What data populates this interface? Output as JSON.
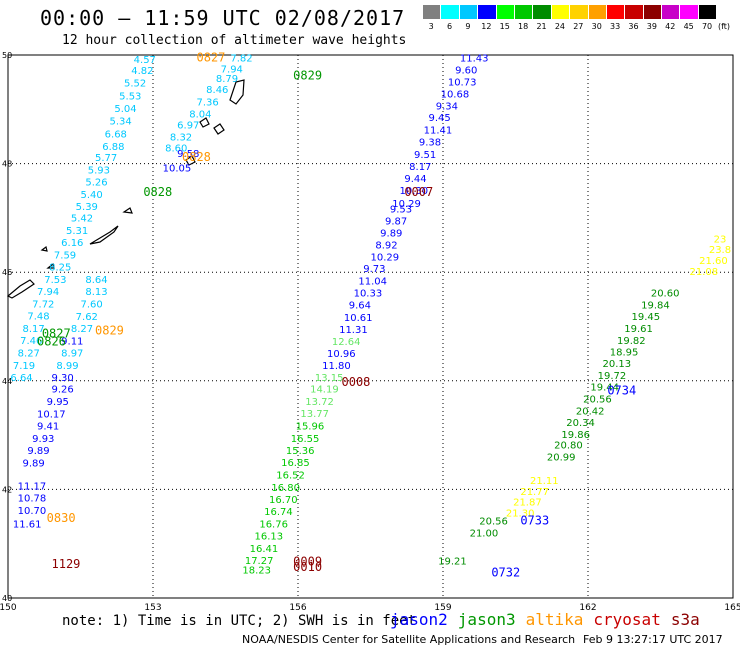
{
  "header": {
    "title": "00:00 — 11:59 UTC 02/08/2017",
    "subtitle": "12 hour collection of altimeter wave heights"
  },
  "legend": {
    "unit": "(ft)",
    "bins": [
      {
        "value": "3",
        "color": "#808080"
      },
      {
        "value": "6",
        "color": "#00ffff"
      },
      {
        "value": "9",
        "color": "#00c8ff"
      },
      {
        "value": "12",
        "color": "#0000ff"
      },
      {
        "value": "15",
        "color": "#00ff00"
      },
      {
        "value": "18",
        "color": "#00c800"
      },
      {
        "value": "21",
        "color": "#008c00"
      },
      {
        "value": "24",
        "color": "#ffff00"
      },
      {
        "value": "27",
        "color": "#ffd200"
      },
      {
        "value": "30",
        "color": "#ffa000"
      },
      {
        "value": "33",
        "color": "#ff0000"
      },
      {
        "value": "36",
        "color": "#c80000"
      },
      {
        "value": "39",
        "color": "#8c0000"
      },
      {
        "value": "42",
        "color": "#c800c8"
      },
      {
        "value": "45",
        "color": "#ff00ff"
      },
      {
        "value": "70",
        "color": "#000000"
      }
    ],
    "trailing_value": "70"
  },
  "map": {
    "lon_range": [
      150,
      165
    ],
    "lat_range": [
      40,
      50
    ],
    "lon_ticks": [
      "150",
      "153",
      "156",
      "159",
      "162",
      "165"
    ],
    "lat_ticks": [
      "40",
      "42",
      "44",
      "46",
      "48",
      "50"
    ],
    "grid": true
  },
  "satellites": [
    {
      "name": "jason2",
      "color": "#0000ff"
    },
    {
      "name": "jason3",
      "color": "#009600"
    },
    {
      "name": "altika",
      "color": "#ff9600"
    },
    {
      "name": "cryosat",
      "color": "#c80000"
    },
    {
      "name": "s3a",
      "color": "#8c0000"
    }
  ],
  "tracks": {
    "time_labels": [
      {
        "text": "0827",
        "lon": 153.9,
        "lat": 49.88,
        "color": "#ff9600"
      },
      {
        "text": "0829",
        "lon": 155.9,
        "lat": 49.55,
        "color": "#009600"
      },
      {
        "text": "0828",
        "lon": 153.6,
        "lat": 48.05,
        "color": "#ff9600"
      },
      {
        "text": "0828",
        "lon": 152.8,
        "lat": 47.4,
        "color": "#009600"
      },
      {
        "text": "0007",
        "lon": 158.2,
        "lat": 47.4,
        "color": "#8c0000"
      },
      {
        "text": "0829",
        "lon": 151.8,
        "lat": 44.85,
        "color": "#ff9600"
      },
      {
        "text": "0827",
        "lon": 150.7,
        "lat": 44.8,
        "color": "#009600"
      },
      {
        "text": "0826",
        "lon": 150.6,
        "lat": 44.65,
        "color": "#009600"
      },
      {
        "text": "0008",
        "lon": 156.9,
        "lat": 43.9,
        "color": "#8c0000"
      },
      {
        "text": "0734",
        "lon": 162.4,
        "lat": 43.75,
        "color": "#0000ff"
      },
      {
        "text": "0830",
        "lon": 150.8,
        "lat": 41.4,
        "color": "#ff9600"
      },
      {
        "text": "0733",
        "lon": 160.6,
        "lat": 41.35,
        "color": "#0000ff"
      },
      {
        "text": "1129",
        "lon": 150.9,
        "lat": 40.55,
        "color": "#8c0000"
      },
      {
        "text": "0009",
        "lon": 155.9,
        "lat": 40.6,
        "color": "#8c0000"
      },
      {
        "text": "0010",
        "lon": 155.9,
        "lat": 40.5,
        "color": "#8c0000"
      },
      {
        "text": "0732",
        "lon": 160.0,
        "lat": 40.4,
        "color": "#0000ff"
      }
    ],
    "points": [
      {
        "text": "4.57",
        "lon": 152.6,
        "lat": 49.85,
        "color": "#00c8ff"
      },
      {
        "text": "4.82",
        "lon": 152.55,
        "lat": 49.65,
        "color": "#00c8ff"
      },
      {
        "text": "5.52",
        "lon": 152.4,
        "lat": 49.42,
        "color": "#00c8ff"
      },
      {
        "text": "5.53",
        "lon": 152.3,
        "lat": 49.18,
        "color": "#00c8ff"
      },
      {
        "text": "5.04",
        "lon": 152.2,
        "lat": 48.95,
        "color": "#00c8ff"
      },
      {
        "text": "5.34",
        "lon": 152.1,
        "lat": 48.72,
        "color": "#00c8ff"
      },
      {
        "text": "6.68",
        "lon": 152.0,
        "lat": 48.48,
        "color": "#00c8ff"
      },
      {
        "text": "6.88",
        "lon": 151.95,
        "lat": 48.25,
        "color": "#00c8ff"
      },
      {
        "text": "5.77",
        "lon": 151.8,
        "lat": 48.05,
        "color": "#00c8ff"
      },
      {
        "text": "5.93",
        "lon": 151.65,
        "lat": 47.82,
        "color": "#00c8ff"
      },
      {
        "text": "5.26",
        "lon": 151.6,
        "lat": 47.6,
        "color": "#00c8ff"
      },
      {
        "text": "5.40",
        "lon": 151.5,
        "lat": 47.37,
        "color": "#00c8ff"
      },
      {
        "text": "5.39",
        "lon": 151.4,
        "lat": 47.15,
        "color": "#00c8ff"
      },
      {
        "text": "5.42",
        "lon": 151.3,
        "lat": 46.93,
        "color": "#00c8ff"
      },
      {
        "text": "5.31",
        "lon": 151.2,
        "lat": 46.7,
        "color": "#00c8ff"
      },
      {
        "text": "6.16",
        "lon": 151.1,
        "lat": 46.48,
        "color": "#00c8ff"
      },
      {
        "text": "7.59",
        "lon": 150.95,
        "lat": 46.25,
        "color": "#00c8ff"
      },
      {
        "text": "8.25",
        "lon": 150.85,
        "lat": 46.03,
        "color": "#00c8ff"
      },
      {
        "text": "7.53",
        "lon": 150.75,
        "lat": 45.8,
        "color": "#00c8ff"
      },
      {
        "text": "7.94",
        "lon": 150.6,
        "lat": 45.58,
        "color": "#00c8ff"
      },
      {
        "text": "7.72",
        "lon": 150.5,
        "lat": 45.35,
        "color": "#00c8ff"
      },
      {
        "text": "7.48",
        "lon": 150.4,
        "lat": 45.13,
        "color": "#00c8ff"
      },
      {
        "text": "8.17",
        "lon": 150.3,
        "lat": 44.9,
        "color": "#00c8ff"
      },
      {
        "text": "7.46",
        "lon": 150.25,
        "lat": 44.68,
        "color": "#00c8ff"
      },
      {
        "text": "8.27",
        "lon": 150.2,
        "lat": 44.45,
        "color": "#00c8ff"
      },
      {
        "text": "7.19",
        "lon": 150.1,
        "lat": 44.22,
        "color": "#00c8ff"
      },
      {
        "text": "6.64",
        "lon": 150.05,
        "lat": 44.0,
        "color": "#00c8ff"
      },
      {
        "text": "7.82",
        "lon": 154.6,
        "lat": 49.88,
        "color": "#00c8ff"
      },
      {
        "text": "7.94",
        "lon": 154.4,
        "lat": 49.68,
        "color": "#00c8ff"
      },
      {
        "text": "8.79",
        "lon": 154.3,
        "lat": 49.5,
        "color": "#00c8ff"
      },
      {
        "text": "8.46",
        "lon": 154.1,
        "lat": 49.3,
        "color": "#00c8ff"
      },
      {
        "text": "7.36",
        "lon": 153.9,
        "lat": 49.07,
        "color": "#00c8ff"
      },
      {
        "text": "8.04",
        "lon": 153.75,
        "lat": 48.85,
        "color": "#00c8ff"
      },
      {
        "text": "6.97",
        "lon": 153.5,
        "lat": 48.65,
        "color": "#00c8ff"
      },
      {
        "text": "8.32",
        "lon": 153.35,
        "lat": 48.43,
        "color": "#00c8ff"
      },
      {
        "text": "8.60",
        "lon": 153.25,
        "lat": 48.22,
        "color": "#00c8ff"
      },
      {
        "text": "8.64",
        "lon": 151.6,
        "lat": 45.8,
        "color": "#00c8ff"
      },
      {
        "text": "8.13",
        "lon": 151.6,
        "lat": 45.58,
        "color": "#00c8ff"
      },
      {
        "text": "7.60",
        "lon": 151.5,
        "lat": 45.35,
        "color": "#00c8ff"
      },
      {
        "text": "7.62",
        "lon": 151.4,
        "lat": 45.12,
        "color": "#00c8ff"
      },
      {
        "text": "8.27",
        "lon": 151.3,
        "lat": 44.9,
        "color": "#00c8ff"
      },
      {
        "text": "8.97",
        "lon": 151.1,
        "lat": 44.45,
        "color": "#00c8ff"
      },
      {
        "text": "8.99",
        "lon": 151.0,
        "lat": 44.22,
        "color": "#00c8ff"
      },
      {
        "text": "9.58",
        "lon": 153.5,
        "lat": 48.12,
        "color": "#0000ff"
      },
      {
        "text": "10.05",
        "lon": 153.2,
        "lat": 47.85,
        "color": "#0000ff"
      },
      {
        "text": "9.11",
        "lon": 151.1,
        "lat": 44.67,
        "color": "#0000ff"
      },
      {
        "text": "9.30",
        "lon": 150.9,
        "lat": 44.0,
        "color": "#0000ff"
      },
      {
        "text": "9.26",
        "lon": 150.9,
        "lat": 43.78,
        "color": "#0000ff"
      },
      {
        "text": "9.95",
        "lon": 150.8,
        "lat": 43.55,
        "color": "#0000ff"
      },
      {
        "text": "10.17",
        "lon": 150.6,
        "lat": 43.32,
        "color": "#0000ff"
      },
      {
        "text": "9.41",
        "lon": 150.6,
        "lat": 43.1,
        "color": "#0000ff"
      },
      {
        "text": "9.93",
        "lon": 150.5,
        "lat": 42.87,
        "color": "#0000ff"
      },
      {
        "text": "9.89",
        "lon": 150.4,
        "lat": 42.65,
        "color": "#0000ff"
      },
      {
        "text": "9.89",
        "lon": 150.3,
        "lat": 42.42,
        "color": "#0000ff"
      },
      {
        "text": "11.17",
        "lon": 150.2,
        "lat": 42.0,
        "color": "#0000ff"
      },
      {
        "text": "10.78",
        "lon": 150.2,
        "lat": 41.78,
        "color": "#0000ff"
      },
      {
        "text": "10.70",
        "lon": 150.2,
        "lat": 41.55,
        "color": "#0000ff"
      },
      {
        "text": "11.61",
        "lon": 150.1,
        "lat": 41.3,
        "color": "#0000ff"
      },
      {
        "text": "11.43",
        "lon": 159.35,
        "lat": 49.88,
        "color": "#0000ff"
      },
      {
        "text": "9.60",
        "lon": 159.25,
        "lat": 49.66,
        "color": "#0000ff"
      },
      {
        "text": "10.73",
        "lon": 159.1,
        "lat": 49.44,
        "color": "#0000ff"
      },
      {
        "text": "10.68",
        "lon": 158.95,
        "lat": 49.22,
        "color": "#0000ff"
      },
      {
        "text": "9.34",
        "lon": 158.85,
        "lat": 49.0,
        "color": "#0000ff"
      },
      {
        "text": "9.45",
        "lon": 158.7,
        "lat": 48.78,
        "color": "#0000ff"
      },
      {
        "text": "11.41",
        "lon": 158.6,
        "lat": 48.55,
        "color": "#0000ff"
      },
      {
        "text": "9.38",
        "lon": 158.5,
        "lat": 48.33,
        "color": "#0000ff"
      },
      {
        "text": "9.51",
        "lon": 158.4,
        "lat": 48.1,
        "color": "#0000ff"
      },
      {
        "text": "8.17",
        "lon": 158.3,
        "lat": 47.88,
        "color": "#0000ff"
      },
      {
        "text": "9.44",
        "lon": 158.2,
        "lat": 47.66,
        "color": "#0000ff"
      },
      {
        "text": "10.30",
        "lon": 158.1,
        "lat": 47.44,
        "color": "#0000ff"
      },
      {
        "text": "10.29",
        "lon": 157.95,
        "lat": 47.2,
        "color": "#0000ff"
      },
      {
        "text": "9.53",
        "lon": 157.9,
        "lat": 47.1,
        "color": "#0000ff"
      },
      {
        "text": "9.87",
        "lon": 157.8,
        "lat": 46.88,
        "color": "#0000ff"
      },
      {
        "text": "9.89",
        "lon": 157.7,
        "lat": 46.66,
        "color": "#0000ff"
      },
      {
        "text": "8.92",
        "lon": 157.6,
        "lat": 46.44,
        "color": "#0000ff"
      },
      {
        "text": "10.29",
        "lon": 157.5,
        "lat": 46.22,
        "color": "#0000ff"
      },
      {
        "text": "9.73",
        "lon": 157.35,
        "lat": 46.0,
        "color": "#0000ff"
      },
      {
        "text": "11.04",
        "lon": 157.25,
        "lat": 45.77,
        "color": "#0000ff"
      },
      {
        "text": "10.33",
        "lon": 157.15,
        "lat": 45.55,
        "color": "#0000ff"
      },
      {
        "text": "9.64",
        "lon": 157.05,
        "lat": 45.33,
        "color": "#0000ff"
      },
      {
        "text": "10.61",
        "lon": 156.95,
        "lat": 45.1,
        "color": "#0000ff"
      },
      {
        "text": "11.31",
        "lon": 156.85,
        "lat": 44.88,
        "color": "#0000ff"
      },
      {
        "text": "10.96",
        "lon": 156.6,
        "lat": 44.44,
        "color": "#0000ff"
      },
      {
        "text": "11.80",
        "lon": 156.5,
        "lat": 44.22,
        "color": "#0000ff"
      },
      {
        "text": "12.64",
        "lon": 156.7,
        "lat": 44.66,
        "color": "#64e664"
      },
      {
        "text": "13.15",
        "lon": 156.35,
        "lat": 44.0,
        "color": "#64e664"
      },
      {
        "text": "14.19",
        "lon": 156.25,
        "lat": 43.78,
        "color": "#64e664"
      },
      {
        "text": "13.72",
        "lon": 156.15,
        "lat": 43.55,
        "color": "#64e664"
      },
      {
        "text": "13.77",
        "lon": 156.05,
        "lat": 43.33,
        "color": "#64e664"
      },
      {
        "text": "15.96",
        "lon": 155.95,
        "lat": 43.1,
        "color": "#00c800"
      },
      {
        "text": "16.55",
        "lon": 155.85,
        "lat": 42.87,
        "color": "#00c800"
      },
      {
        "text": "15.36",
        "lon": 155.75,
        "lat": 42.65,
        "color": "#00c800"
      },
      {
        "text": "16.85",
        "lon": 155.65,
        "lat": 42.43,
        "color": "#00c800"
      },
      {
        "text": "16.52",
        "lon": 155.55,
        "lat": 42.2,
        "color": "#00c800"
      },
      {
        "text": "16.80",
        "lon": 155.45,
        "lat": 41.97,
        "color": "#00c800"
      },
      {
        "text": "16.70",
        "lon": 155.4,
        "lat": 41.75,
        "color": "#00c800"
      },
      {
        "text": "16.74",
        "lon": 155.3,
        "lat": 41.53,
        "color": "#00c800"
      },
      {
        "text": "16.76",
        "lon": 155.2,
        "lat": 41.3,
        "color": "#00c800"
      },
      {
        "text": "16.13",
        "lon": 155.1,
        "lat": 41.08,
        "color": "#00c800"
      },
      {
        "text": "16.41",
        "lon": 155.0,
        "lat": 40.85,
        "color": "#00c800"
      },
      {
        "text": "17.27",
        "lon": 154.9,
        "lat": 40.63,
        "color": "#00c800"
      },
      {
        "text": "18.23",
        "lon": 154.85,
        "lat": 40.45,
        "color": "#00c800"
      },
      {
        "text": "20.60",
        "lon": 163.3,
        "lat": 45.55,
        "color": "#008c00"
      },
      {
        "text": "19.84",
        "lon": 163.1,
        "lat": 45.33,
        "color": "#008c00"
      },
      {
        "text": "19.45",
        "lon": 162.9,
        "lat": 45.12,
        "color": "#008c00"
      },
      {
        "text": "19.61",
        "lon": 162.75,
        "lat": 44.9,
        "color": "#008c00"
      },
      {
        "text": "19.82",
        "lon": 162.6,
        "lat": 44.68,
        "color": "#008c00"
      },
      {
        "text": "18.95",
        "lon": 162.45,
        "lat": 44.47,
        "color": "#008c00"
      },
      {
        "text": "20.13",
        "lon": 162.3,
        "lat": 44.25,
        "color": "#008c00"
      },
      {
        "text": "19.72",
        "lon": 162.2,
        "lat": 44.03,
        "color": "#008c00"
      },
      {
        "text": "19.44",
        "lon": 162.05,
        "lat": 43.82,
        "color": "#008c00"
      },
      {
        "text": "20.56",
        "lon": 161.9,
        "lat": 43.6,
        "color": "#008c00"
      },
      {
        "text": "20.42",
        "lon": 161.75,
        "lat": 43.38,
        "color": "#008c00"
      },
      {
        "text": "20.34",
        "lon": 161.55,
        "lat": 43.17,
        "color": "#008c00"
      },
      {
        "text": "19.86",
        "lon": 161.45,
        "lat": 42.95,
        "color": "#008c00"
      },
      {
        "text": "20.80",
        "lon": 161.3,
        "lat": 42.75,
        "color": "#008c00"
      },
      {
        "text": "20.99",
        "lon": 161.15,
        "lat": 42.53,
        "color": "#008c00"
      },
      {
        "text": "20.56",
        "lon": 159.75,
        "lat": 41.35,
        "color": "#008c00"
      },
      {
        "text": "21.00",
        "lon": 159.55,
        "lat": 41.13,
        "color": "#008c00"
      },
      {
        "text": "19.21",
        "lon": 158.9,
        "lat": 40.62,
        "color": "#008c00"
      },
      {
        "text": "23",
        "lon": 164.6,
        "lat": 46.55,
        "color": "#ffff00"
      },
      {
        "text": "23.8",
        "lon": 164.5,
        "lat": 46.35,
        "color": "#ffff00"
      },
      {
        "text": "21.60",
        "lon": 164.3,
        "lat": 46.15,
        "color": "#ffff00"
      },
      {
        "text": "21.08",
        "lon": 164.1,
        "lat": 45.95,
        "color": "#ffff00"
      },
      {
        "text": "21.11",
        "lon": 160.8,
        "lat": 42.1,
        "color": "#ffff00"
      },
      {
        "text": "21.77",
        "lon": 160.6,
        "lat": 41.9,
        "color": "#ffff00"
      },
      {
        "text": "21.87",
        "lon": 160.45,
        "lat": 41.7,
        "color": "#ffff00"
      },
      {
        "text": "21.30",
        "lon": 160.3,
        "lat": 41.5,
        "color": "#ffff00"
      }
    ]
  },
  "notes": {
    "text": "note: 1) Time is in UTC; 2) SWH is in feet"
  },
  "footer": {
    "center": "NOAA/NESDIS Center for Satellite Applications and Research",
    "timestamp": "Feb  9 13:27:17 UTC 2017"
  }
}
